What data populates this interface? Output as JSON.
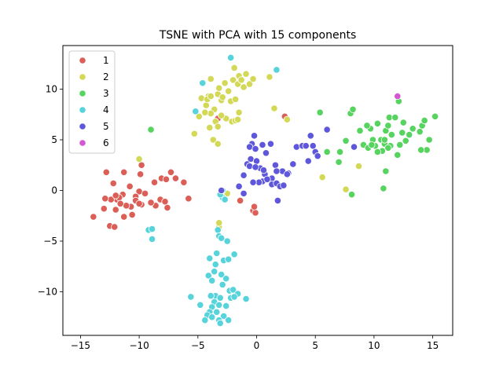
{
  "chart_data": {
    "type": "scatter",
    "title": "TSNE with PCA with 15 components",
    "xlabel": "",
    "ylabel": "",
    "xlim": [
      -16.5,
      16.7
    ],
    "ylim": [
      -14.3,
      14.3
    ],
    "xticks": [
      -15,
      -10,
      -5,
      0,
      5,
      10,
      15
    ],
    "yticks": [
      -10,
      -5,
      0,
      5,
      10
    ],
    "grid": false,
    "legend": {
      "placement": "top-left"
    },
    "series": [
      {
        "name": "1",
        "color": "#db5f57",
        "points": [
          [
            -12.8,
            1.8
          ],
          [
            -12.2,
            0.7
          ],
          [
            -11.3,
            1.8
          ],
          [
            -10.8,
            0.4
          ],
          [
            -10.0,
            -0.1
          ],
          [
            -9.9,
            1.6
          ],
          [
            -9.8,
            2.5
          ],
          [
            -9.5,
            -0.3
          ],
          [
            -8.7,
            0.8
          ],
          [
            -8.1,
            1.2
          ],
          [
            -7.7,
            1.1
          ],
          [
            -7.3,
            1.8
          ],
          [
            -6.9,
            1.2
          ],
          [
            -8.6,
            -1.5
          ],
          [
            -9.0,
            -1.2
          ],
          [
            -9.8,
            -1.4
          ],
          [
            -10.3,
            -0.6
          ],
          [
            -10.7,
            -1.6
          ],
          [
            -11.1,
            -1.5
          ],
          [
            -11.4,
            -0.4
          ],
          [
            -11.9,
            -0.9
          ],
          [
            -12.4,
            -0.9
          ],
          [
            -12.9,
            -0.8
          ],
          [
            -12.0,
            -1.9
          ],
          [
            -11.3,
            -2.6
          ],
          [
            -10.6,
            -2.4
          ],
          [
            -10.3,
            -1.0
          ],
          [
            -12.5,
            -3.5
          ],
          [
            -12.1,
            -3.6
          ],
          [
            -13.0,
            -1.8
          ],
          [
            -13.9,
            -2.6
          ],
          [
            -8.2,
            -0.9
          ],
          [
            -7.6,
            -1.7
          ],
          [
            -7.8,
            -1.1
          ],
          [
            -5.8,
            -0.8
          ],
          [
            -6.2,
            0.8
          ],
          [
            -11.7,
            -0.7
          ],
          [
            -12.0,
            -0.5
          ],
          [
            -11.6,
            -1.3
          ],
          [
            -3.3,
            7.1
          ],
          [
            2.4,
            7.3
          ],
          [
            -1.4,
            -1.0
          ],
          [
            -0.3,
            -2.0
          ],
          [
            -0.1,
            -2.2
          ],
          [
            -0.2,
            -1.6
          ],
          [
            -10.0,
            -1.3
          ]
        ]
      },
      {
        "name": "2",
        "color": "#d3d957",
        "points": [
          [
            -4.9,
            7.3
          ],
          [
            -4.7,
            9.1
          ],
          [
            -4.3,
            8.4
          ],
          [
            -4.1,
            9.3
          ],
          [
            -3.9,
            11.0
          ],
          [
            -3.6,
            8.0
          ],
          [
            -3.3,
            9.5
          ],
          [
            -3.2,
            10.1
          ],
          [
            -3.0,
            8.9
          ],
          [
            -2.9,
            9.2
          ],
          [
            -2.6,
            7.1
          ],
          [
            -2.4,
            9.8
          ],
          [
            -2.2,
            8.8
          ],
          [
            -2.0,
            10.9
          ],
          [
            -1.9,
            12.1
          ],
          [
            -1.8,
            9.0
          ],
          [
            -1.6,
            10.5
          ],
          [
            -1.5,
            7.7
          ],
          [
            -1.5,
            11.3
          ],
          [
            -1.3,
            10.9
          ],
          [
            -1.1,
            10.2
          ],
          [
            -0.9,
            11.5
          ],
          [
            -0.6,
            10.5
          ],
          [
            -0.3,
            11.0
          ],
          [
            1.1,
            11.2
          ],
          [
            -2.7,
            10.6
          ],
          [
            -3.9,
            7.6
          ],
          [
            -4.2,
            9.0
          ],
          [
            -3.5,
            6.8
          ],
          [
            -3.3,
            6.3
          ],
          [
            -3.7,
            5.0
          ],
          [
            -3.3,
            4.6
          ],
          [
            -2.1,
            6.8
          ],
          [
            -1.8,
            6.9
          ],
          [
            -1.6,
            7.0
          ],
          [
            -3.0,
            7.4
          ],
          [
            -3.9,
            9.3
          ],
          [
            -5.3,
            5.6
          ],
          [
            -4.4,
            7.7
          ],
          [
            -4.0,
            6.2
          ],
          [
            1.5,
            8.1
          ],
          [
            2.6,
            7.0
          ],
          [
            8.7,
            2.4
          ],
          [
            7.6,
            0.1
          ],
          [
            5.6,
            1.3
          ],
          [
            -10.0,
            3.1
          ],
          [
            -3.2,
            -3.6
          ],
          [
            -3.2,
            -3.2
          ],
          [
            -2.5,
            -0.3
          ]
        ]
      },
      {
        "name": "3",
        "color": "#57d35f",
        "points": [
          [
            5.4,
            7.7
          ],
          [
            8.0,
            7.6
          ],
          [
            8.2,
            8.0
          ],
          [
            8.8,
            5.9
          ],
          [
            9.1,
            4.5
          ],
          [
            9.5,
            4.2
          ],
          [
            9.7,
            6.1
          ],
          [
            9.9,
            5.0
          ],
          [
            10.1,
            4.4
          ],
          [
            10.3,
            6.6
          ],
          [
            10.6,
            5.0
          ],
          [
            10.7,
            3.9
          ],
          [
            10.9,
            4.6
          ],
          [
            11.0,
            5.9
          ],
          [
            11.2,
            6.4
          ],
          [
            11.3,
            7.2
          ],
          [
            11.4,
            4.4
          ],
          [
            11.5,
            5.5
          ],
          [
            11.8,
            7.2
          ],
          [
            12.1,
            8.8
          ],
          [
            12.2,
            4.5
          ],
          [
            12.4,
            5.7
          ],
          [
            12.5,
            6.7
          ],
          [
            13.0,
            5.5
          ],
          [
            13.3,
            6.1
          ],
          [
            13.9,
            5.8
          ],
          [
            14.1,
            6.4
          ],
          [
            14.3,
            6.9
          ],
          [
            14.5,
            4.0
          ],
          [
            14.7,
            5.0
          ],
          [
            15.2,
            7.3
          ],
          [
            12.7,
            4.9
          ],
          [
            12.0,
            3.5
          ],
          [
            11.0,
            1.9
          ],
          [
            10.8,
            0.2
          ],
          [
            8.1,
            -0.4
          ],
          [
            7.6,
            4.9
          ],
          [
            7.1,
            3.8
          ],
          [
            7.0,
            2.8
          ],
          [
            6.0,
            3.8
          ],
          [
            9.4,
            6.4
          ],
          [
            10.3,
            3.8
          ],
          [
            9.8,
            4.5
          ],
          [
            10.9,
            5.0
          ],
          [
            11.2,
            4.2
          ],
          [
            14.0,
            4.0
          ],
          [
            -9.0,
            6.0
          ]
        ]
      },
      {
        "name": "4",
        "color": "#57d3db",
        "points": [
          [
            -2.2,
            13.1
          ],
          [
            1.7,
            11.9
          ],
          [
            -4.6,
            10.6
          ],
          [
            -5.2,
            7.8
          ],
          [
            -2.9,
            -0.7
          ],
          [
            -3.1,
            -0.4
          ],
          [
            -2.9,
            0.0
          ],
          [
            -2.7,
            -0.9
          ],
          [
            -3.3,
            -3.9
          ],
          [
            -3.2,
            -4.5
          ],
          [
            -3.0,
            -4.7
          ],
          [
            -2.5,
            -5.0
          ],
          [
            -3.4,
            -6.2
          ],
          [
            -4.0,
            -6.7
          ],
          [
            -3.5,
            -7.3
          ],
          [
            -2.8,
            -6.9
          ],
          [
            -1.9,
            -6.3
          ],
          [
            -2.4,
            -6.8
          ],
          [
            -3.6,
            -8.0
          ],
          [
            -3.0,
            -8.3
          ],
          [
            -2.6,
            -8.7
          ],
          [
            -4.1,
            -8.4
          ],
          [
            -3.8,
            -8.9
          ],
          [
            -2.9,
            -9.3
          ],
          [
            -3.5,
            -10.4
          ],
          [
            -3.1,
            -10.6
          ],
          [
            -2.3,
            -9.9
          ],
          [
            -2.0,
            -9.8
          ],
          [
            -1.6,
            -10.2
          ],
          [
            -3.9,
            -10.4
          ],
          [
            -3.6,
            -11.0
          ],
          [
            -3.2,
            -11.3
          ],
          [
            -2.6,
            -11.4
          ],
          [
            -2.2,
            -10.6
          ],
          [
            -1.9,
            -10.5
          ],
          [
            -0.9,
            -10.7
          ],
          [
            -3.8,
            -11.5
          ],
          [
            -4.0,
            -12.0
          ],
          [
            -4.2,
            -12.3
          ],
          [
            -3.4,
            -12.0
          ],
          [
            -2.8,
            -12.4
          ],
          [
            -2.4,
            -12.8
          ],
          [
            -4.4,
            -12.8
          ],
          [
            -3.8,
            -12.5
          ],
          [
            -3.2,
            -12.8
          ],
          [
            -3.1,
            -13.1
          ],
          [
            -5.6,
            -10.5
          ],
          [
            -4.8,
            -11.3
          ],
          [
            -9.2,
            -3.9
          ],
          [
            -8.9,
            -3.8
          ],
          [
            -8.9,
            -4.8
          ]
        ]
      },
      {
        "name": "5",
        "color": "#5f57db",
        "points": [
          [
            -0.2,
            5.4
          ],
          [
            -0.4,
            4.6
          ],
          [
            -0.6,
            4.3
          ],
          [
            -0.1,
            4.1
          ],
          [
            0.5,
            4.5
          ],
          [
            1.2,
            4.6
          ],
          [
            0.8,
            3.7
          ],
          [
            -0.5,
            3.1
          ],
          [
            0.0,
            2.9
          ],
          [
            -0.8,
            2.6
          ],
          [
            0.3,
            2.2
          ],
          [
            0.7,
            1.6
          ],
          [
            1.3,
            1.2
          ],
          [
            1.6,
            2.5
          ],
          [
            2.2,
            1.9
          ],
          [
            2.7,
            1.7
          ],
          [
            3.1,
            2.6
          ],
          [
            3.4,
            4.3
          ],
          [
            3.9,
            4.4
          ],
          [
            4.2,
            4.4
          ],
          [
            4.8,
            4.4
          ],
          [
            4.6,
            5.4
          ],
          [
            5.0,
            3.8
          ],
          [
            5.2,
            3.4
          ],
          [
            4.4,
            2.9
          ],
          [
            6.0,
            6.0
          ],
          [
            2.6,
            1.6
          ],
          [
            0.5,
            0.9
          ],
          [
            0.2,
            0.8
          ],
          [
            -0.3,
            0.8
          ],
          [
            -0.6,
            2.4
          ],
          [
            -1.1,
            1.5
          ],
          [
            -1.5,
            0.4
          ],
          [
            -1.1,
            -0.3
          ],
          [
            0.9,
            1.1
          ],
          [
            1.3,
            0.6
          ],
          [
            1.7,
            0.7
          ],
          [
            2.0,
            0.4
          ],
          [
            1.8,
            -1.0
          ],
          [
            2.3,
            0.5
          ],
          [
            -0.1,
            2.3
          ],
          [
            0.6,
            2.0
          ],
          [
            -3.0,
            0.0
          ],
          [
            8.3,
            4.3
          ],
          [
            1.7,
            1.9
          ]
        ]
      },
      {
        "name": "6",
        "color": "#d357d3",
        "points": [
          [
            12.0,
            9.3
          ]
        ]
      }
    ]
  }
}
